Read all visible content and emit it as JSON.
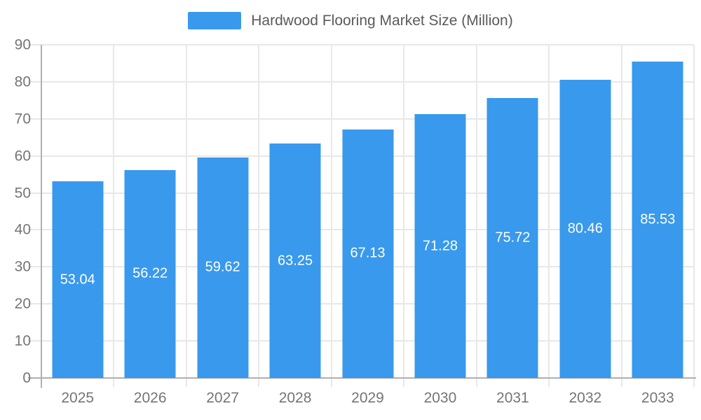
{
  "page": {
    "background": "#ffffff"
  },
  "chart_data": {
    "type": "bar",
    "title": "Hardwood Flooring Market Size (Million)",
    "categories": [
      "2025",
      "2026",
      "2027",
      "2028",
      "2029",
      "2030",
      "2031",
      "2032",
      "2033"
    ],
    "values": [
      53.04,
      56.22,
      59.62,
      63.25,
      67.13,
      71.28,
      75.72,
      80.46,
      85.53
    ],
    "value_labels": [
      "53.04",
      "56.22",
      "59.62",
      "63.25",
      "67.13",
      "71.28",
      "75.72",
      "80.46",
      "85.53"
    ],
    "xlabel": "",
    "ylabel": "",
    "ylim": [
      0,
      90
    ],
    "ytick_step": 10,
    "ytick_labels": [
      "0",
      "10",
      "20",
      "30",
      "40",
      "50",
      "60",
      "70",
      "80",
      "90"
    ],
    "grid": true,
    "legend_position": "top"
  },
  "colors": {
    "accent": "#3999ec",
    "grid": "#e8e8e8",
    "axis": "#b0b0b0",
    "tick_label": "#757575",
    "legend_text": "#5a5a5a",
    "value_label": "#ffffff",
    "background": "#ffffff"
  }
}
